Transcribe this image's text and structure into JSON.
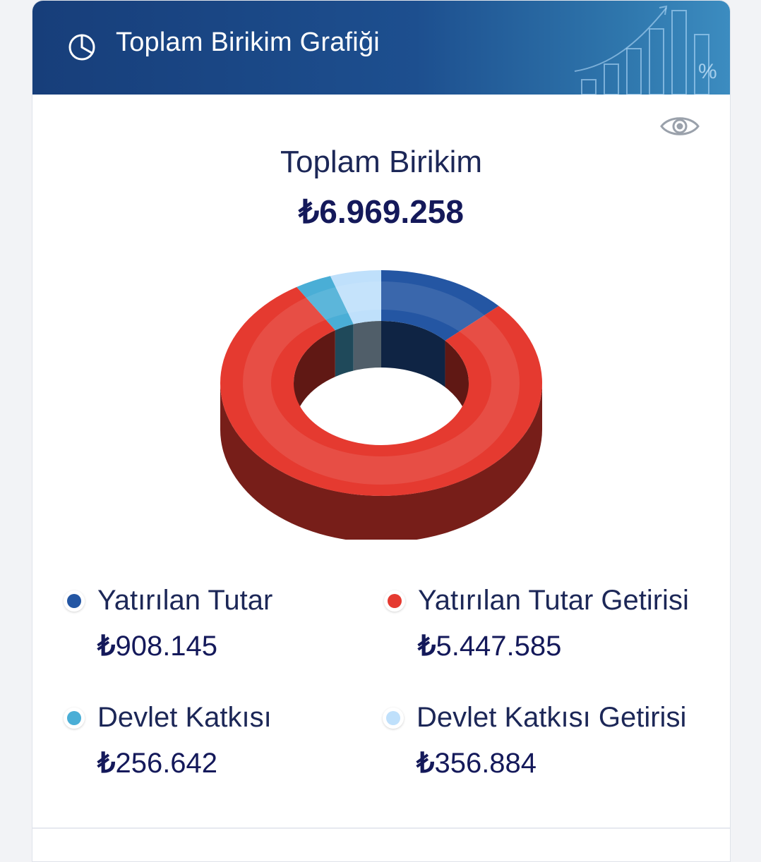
{
  "header": {
    "title": "Toplam Birikim Grafiği",
    "icon": "pie-chart-icon"
  },
  "summary": {
    "label": "Toplam Birikim",
    "value": "₺6.969.258"
  },
  "toggle_icon": "eye-icon",
  "legend": [
    {
      "label": "Yatırılan Tutar",
      "currency": "₺",
      "value": "908.145",
      "color": "#2456a3"
    },
    {
      "label": "Yatırılan Tutar Getirisi",
      "currency": "₺",
      "value": "5.447.585",
      "color": "#e53a30"
    },
    {
      "label": "Devlet Katkısı",
      "currency": "₺",
      "value": "256.642",
      "color": "#4aaed6"
    },
    {
      "label": "Devlet Katkısı Getirisi",
      "currency": "₺",
      "value": "356.884",
      "color": "#bfe0fb"
    }
  ],
  "chart_data": {
    "type": "pie",
    "style": "3d-donut",
    "categories": [
      "Yatırılan Tutar",
      "Yatırılan Tutar Getirisi",
      "Devlet Katkısı",
      "Devlet Katkısı Getirisi"
    ],
    "values": [
      908145,
      5447585,
      256642,
      356884
    ],
    "colors": [
      "#2456a3",
      "#e53a30",
      "#4aaed6",
      "#bfe0fb"
    ],
    "title": "Toplam Birikim",
    "total": 6969258
  }
}
